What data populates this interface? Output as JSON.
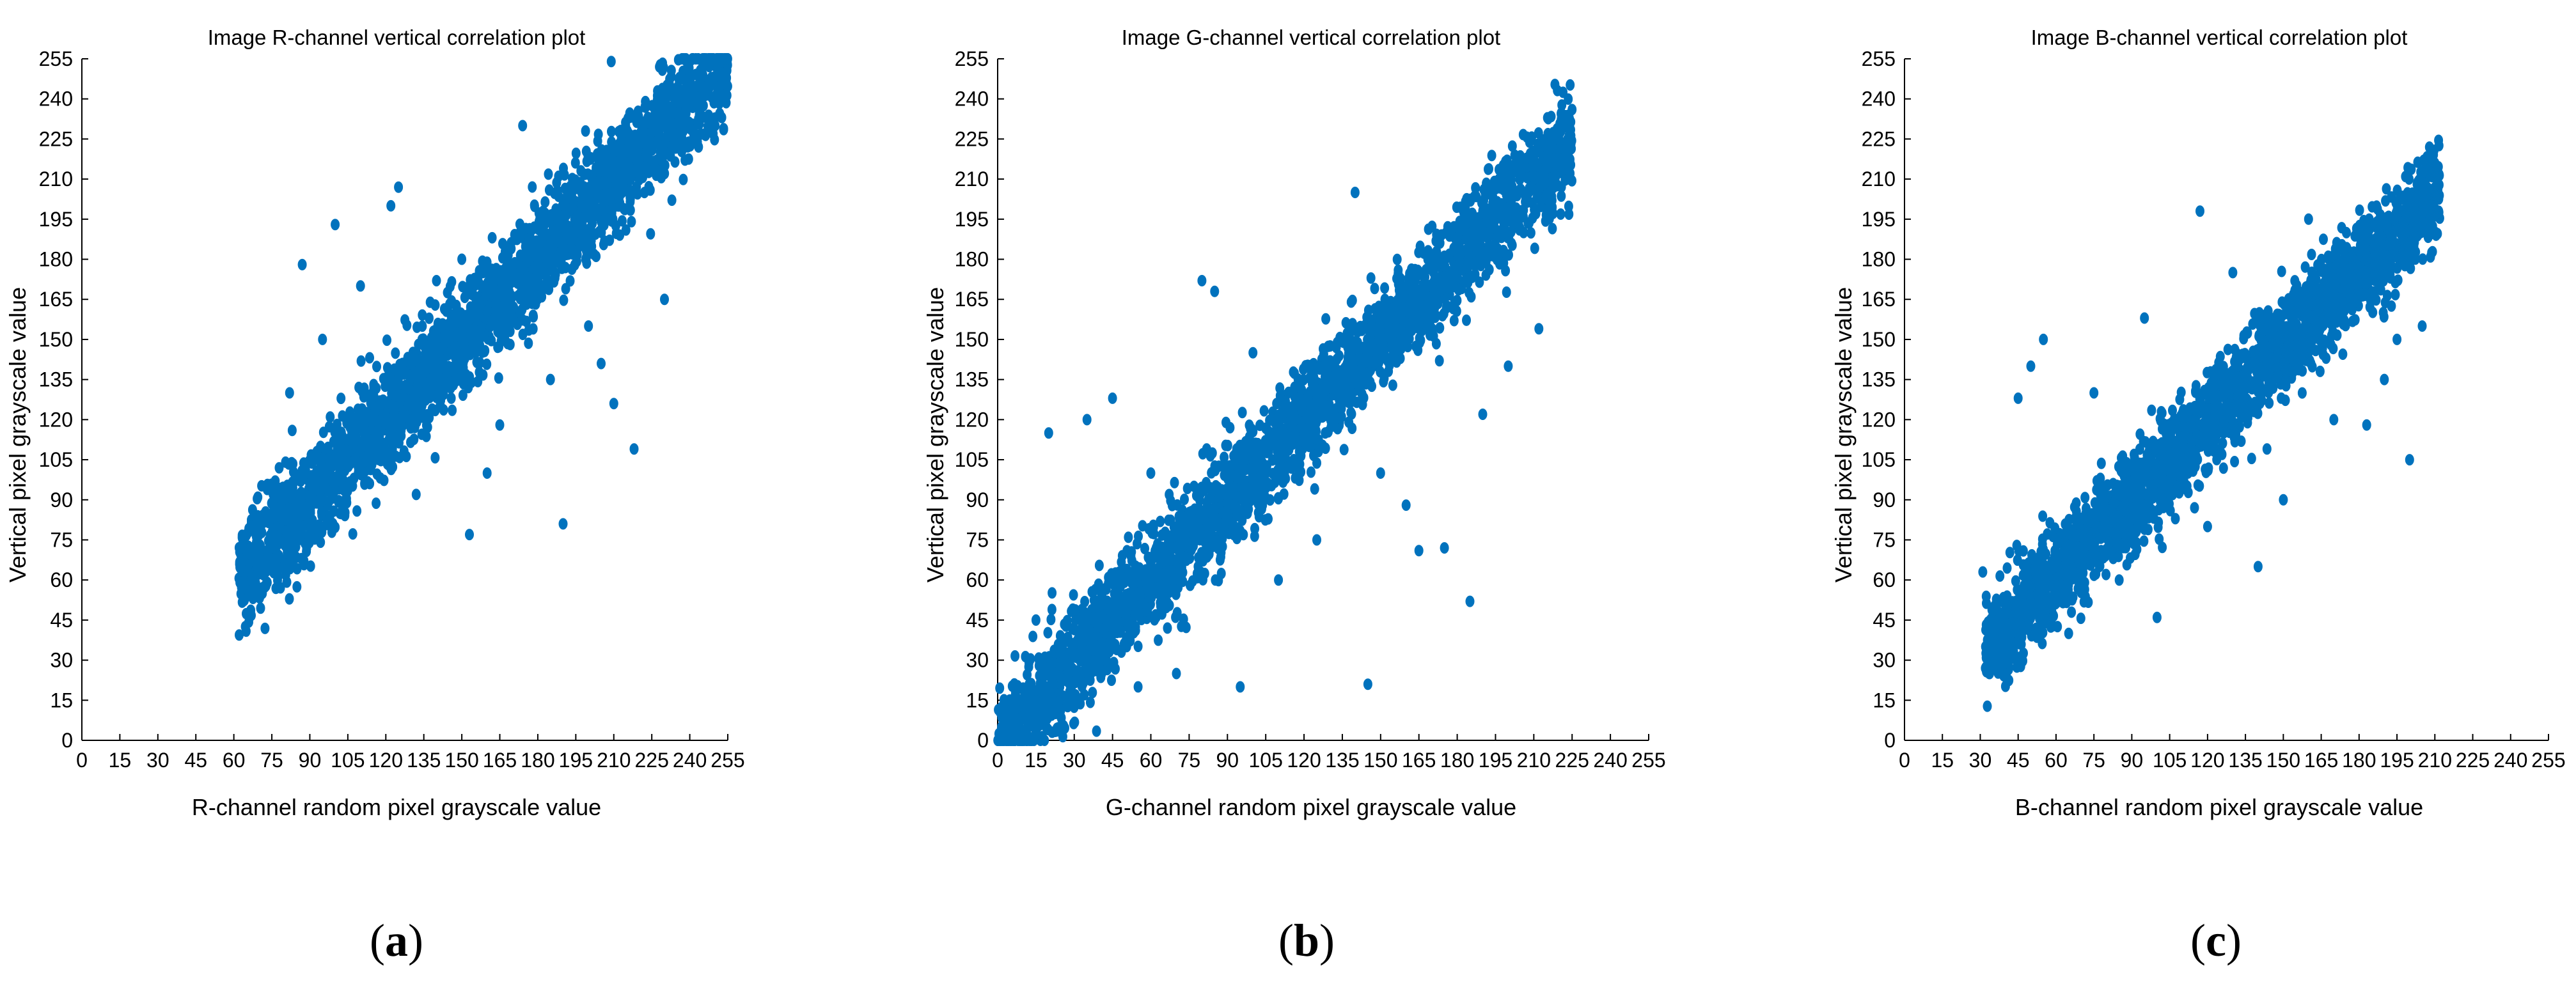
{
  "chart_data": [
    {
      "type": "scatter",
      "panel_label": "a",
      "title": "Image R-channel vertical correlation plot",
      "xlabel": "R-channel random pixel grayscale value",
      "ylabel": "Vertical pixel grayscale value",
      "xlim": [
        0,
        255
      ],
      "ylim": [
        0,
        255
      ],
      "xticks": [
        0,
        15,
        30,
        45,
        60,
        75,
        90,
        105,
        120,
        135,
        150,
        165,
        180,
        195,
        210,
        225,
        240,
        255
      ],
      "yticks": [
        0,
        15,
        30,
        45,
        60,
        75,
        90,
        105,
        120,
        135,
        150,
        165,
        180,
        195,
        210,
        225,
        240,
        255
      ],
      "grid": false,
      "marker_color": "#0072BD",
      "cluster": {
        "x_range": [
          62,
          255
        ],
        "slope": 1.0,
        "intercept": 0,
        "spread": 10
      },
      "outliers": [
        [
          87,
          178
        ],
        [
          100,
          193
        ],
        [
          122,
          200
        ],
        [
          125,
          207
        ],
        [
          190,
          81
        ],
        [
          153,
          77
        ],
        [
          218,
          109
        ],
        [
          210,
          126
        ],
        [
          205,
          141
        ],
        [
          230,
          165
        ],
        [
          209,
          254
        ],
        [
          228,
          252
        ],
        [
          236,
          248
        ],
        [
          174,
          230
        ],
        [
          150,
          180
        ],
        [
          140,
          172
        ],
        [
          110,
          170
        ],
        [
          95,
          150
        ],
        [
          132,
          92
        ],
        [
          160,
          100
        ],
        [
          165,
          118
        ],
        [
          185,
          135
        ],
        [
          200,
          155
        ],
        [
          250,
          230
        ],
        [
          82,
          130
        ]
      ]
    },
    {
      "type": "scatter",
      "panel_label": "b",
      "title": "Image G-channel vertical correlation plot",
      "xlabel": "G-channel random pixel grayscale value",
      "ylabel": "Vertical pixel grayscale value",
      "xlim": [
        0,
        255
      ],
      "ylim": [
        0,
        255
      ],
      "xticks": [
        0,
        15,
        30,
        45,
        60,
        75,
        90,
        105,
        120,
        135,
        150,
        165,
        180,
        195,
        210,
        225,
        240,
        255
      ],
      "yticks": [
        0,
        15,
        30,
        45,
        60,
        75,
        90,
        105,
        120,
        135,
        150,
        165,
        180,
        195,
        210,
        225,
        240,
        255
      ],
      "grid": false,
      "marker_color": "#0072BD",
      "cluster": {
        "x_range": [
          0,
          225
        ],
        "slope": 1.0,
        "intercept": 0,
        "spread": 10
      },
      "outliers": [
        [
          20,
          115
        ],
        [
          45,
          128
        ],
        [
          80,
          172
        ],
        [
          85,
          168
        ],
        [
          140,
          205
        ],
        [
          185,
          52
        ],
        [
          145,
          21
        ],
        [
          165,
          71
        ],
        [
          175,
          72
        ],
        [
          160,
          88
        ],
        [
          212,
          154
        ],
        [
          225,
          236
        ],
        [
          35,
          120
        ],
        [
          60,
          100
        ],
        [
          100,
          145
        ],
        [
          110,
          60
        ],
        [
          125,
          75
        ],
        [
          150,
          100
        ],
        [
          200,
          140
        ],
        [
          55,
          20
        ],
        [
          70,
          25
        ],
        [
          95,
          20
        ],
        [
          15,
          45
        ],
        [
          190,
          122
        ]
      ]
    },
    {
      "type": "scatter",
      "panel_label": "c",
      "title": "Image B-channel vertical correlation plot",
      "xlabel": "B-channel random pixel grayscale value",
      "ylabel": "Vertical pixel grayscale value",
      "xlim": [
        0,
        255
      ],
      "ylim": [
        0,
        255
      ],
      "xticks": [
        0,
        15,
        30,
        45,
        60,
        75,
        90,
        105,
        120,
        135,
        150,
        165,
        180,
        195,
        210,
        225,
        240,
        255
      ],
      "yticks": [
        0,
        15,
        30,
        45,
        60,
        75,
        90,
        105,
        120,
        135,
        150,
        165,
        180,
        195,
        210,
        225,
        240,
        255
      ],
      "grid": false,
      "marker_color": "#0072BD",
      "cluster": {
        "x_range": [
          32,
          212
        ],
        "slope": 0.95,
        "intercept": 5,
        "spread": 9
      },
      "outliers": [
        [
          32,
          27
        ],
        [
          35,
          30
        ],
        [
          31,
          63
        ],
        [
          45,
          128
        ],
        [
          50,
          140
        ],
        [
          55,
          150
        ],
        [
          117,
          198
        ],
        [
          160,
          195
        ],
        [
          200,
          105
        ],
        [
          205,
          155
        ],
        [
          210,
          216
        ],
        [
          183,
          118
        ],
        [
          140,
          65
        ],
        [
          100,
          46
        ],
        [
          85,
          60
        ],
        [
          95,
          158
        ],
        [
          130,
          175
        ],
        [
          170,
          120
        ],
        [
          190,
          135
        ],
        [
          75,
          130
        ],
        [
          65,
          40
        ],
        [
          150,
          90
        ],
        [
          195,
          150
        ],
        [
          120,
          80
        ]
      ]
    }
  ]
}
